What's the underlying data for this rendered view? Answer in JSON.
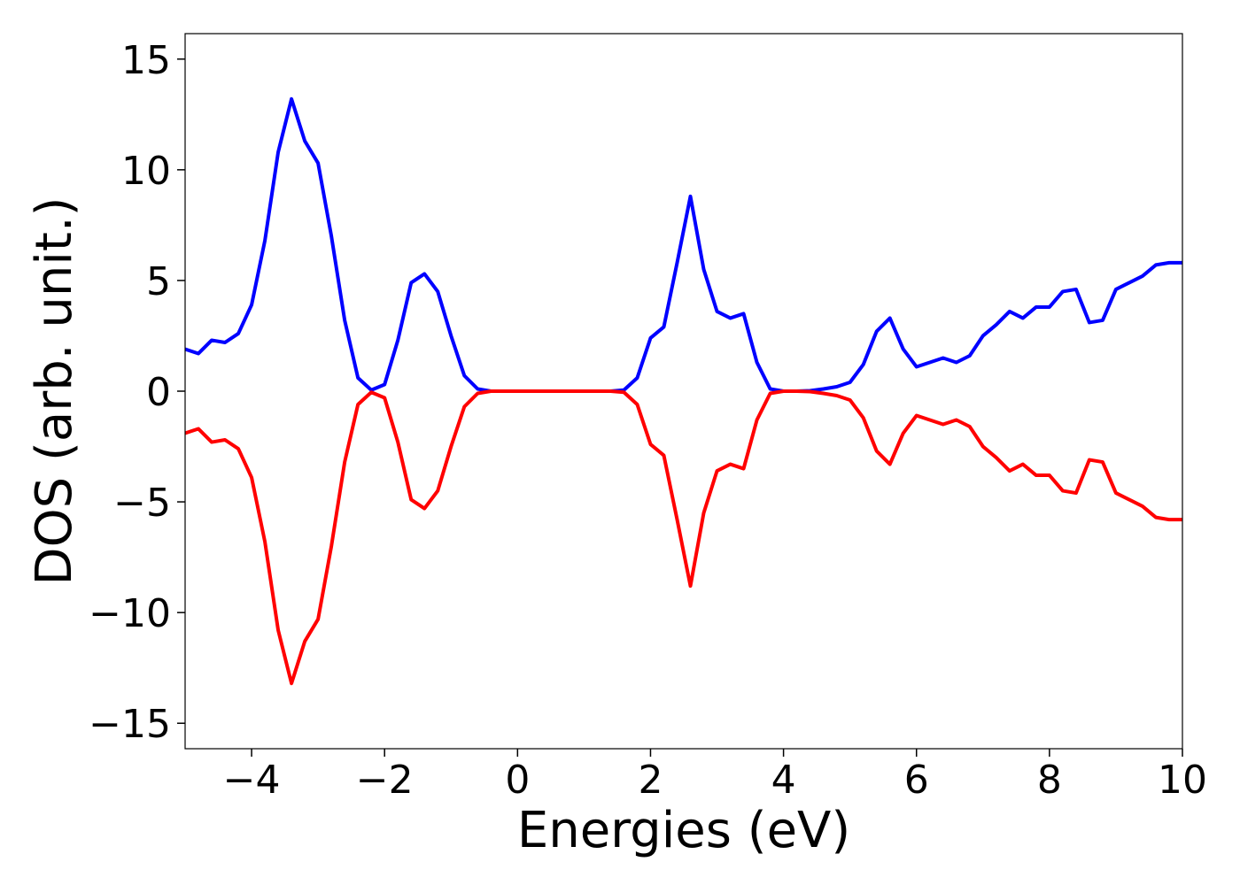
{
  "chart_data": {
    "type": "line",
    "xlabel": "Energies (eV)",
    "ylabel": "DOS (arb. unit.)",
    "x": [
      -5.0,
      -4.8,
      -4.6,
      -4.4,
      -4.2,
      -4.0,
      -3.8,
      -3.6,
      -3.4,
      -3.2,
      -3.0,
      -2.8,
      -2.6,
      -2.4,
      -2.2,
      -2.0,
      -1.8,
      -1.6,
      -1.4,
      -1.2,
      -1.0,
      -0.8,
      -0.6,
      -0.4,
      -0.2,
      0.0,
      0.2,
      0.4,
      0.6,
      0.8,
      1.0,
      1.2,
      1.4,
      1.6,
      1.8,
      2.0,
      2.2,
      2.4,
      2.6,
      2.8,
      3.0,
      3.2,
      3.4,
      3.6,
      3.8,
      4.0,
      4.2,
      4.4,
      4.6,
      4.8,
      5.0,
      5.2,
      5.4,
      5.6,
      5.8,
      6.0,
      6.2,
      6.4,
      6.6,
      6.8,
      7.0,
      7.2,
      7.4,
      7.6,
      7.8,
      8.0,
      8.2,
      8.4,
      8.6,
      8.8,
      9.0,
      9.2,
      9.4,
      9.6,
      9.8,
      10.0
    ],
    "series": [
      {
        "color": "#0000ff",
        "values": [
          1.9,
          1.7,
          2.3,
          2.2,
          2.6,
          3.9,
          6.8,
          10.8,
          13.2,
          11.3,
          10.3,
          7.0,
          3.2,
          0.6,
          0.05,
          0.3,
          2.3,
          4.9,
          5.3,
          4.5,
          2.5,
          0.7,
          0.1,
          0,
          0,
          0,
          0,
          0,
          0,
          0,
          0,
          0,
          0,
          0.05,
          0.6,
          2.4,
          2.9,
          5.8,
          8.8,
          5.5,
          3.6,
          3.3,
          3.5,
          1.3,
          0.1,
          0,
          0,
          0.02,
          0.1,
          0.2,
          0.4,
          1.2,
          2.7,
          3.3,
          1.9,
          1.1,
          1.3,
          1.5,
          1.3,
          1.6,
          2.5,
          3.0,
          3.6,
          3.3,
          3.8,
          3.8,
          4.5,
          4.6,
          3.1,
          3.2,
          4.6,
          4.9,
          5.2,
          5.7,
          5.8,
          5.8
        ]
      },
      {
        "color": "#ff0000",
        "values": [
          -1.9,
          -1.7,
          -2.3,
          -2.2,
          -2.6,
          -3.9,
          -6.8,
          -10.8,
          -13.2,
          -11.3,
          -10.3,
          -7.0,
          -3.2,
          -0.6,
          -0.05,
          -0.3,
          -2.3,
          -4.9,
          -5.3,
          -4.5,
          -2.5,
          -0.7,
          -0.1,
          0,
          0,
          0,
          0,
          0,
          0,
          0,
          0,
          0,
          0,
          -0.05,
          -0.6,
          -2.4,
          -2.9,
          -5.8,
          -8.8,
          -5.5,
          -3.6,
          -3.3,
          -3.5,
          -1.3,
          -0.1,
          0,
          0,
          -0.02,
          -0.1,
          -0.2,
          -0.4,
          -1.2,
          -2.7,
          -3.3,
          -1.9,
          -1.1,
          -1.3,
          -1.5,
          -1.3,
          -1.6,
          -2.5,
          -3.0,
          -3.6,
          -3.3,
          -3.8,
          -3.8,
          -4.5,
          -4.6,
          -3.1,
          -3.2,
          -4.6,
          -4.9,
          -5.2,
          -5.7,
          -5.8,
          -5.8
        ]
      }
    ],
    "xlim": [
      -5,
      10
    ],
    "xticks": [
      {
        "value": -4,
        "label": "−4"
      },
      {
        "value": -2,
        "label": "−2"
      },
      0,
      2,
      4,
      6,
      8,
      10
    ],
    "ylim": [
      -16.15,
      16.15
    ],
    "yticks": [
      {
        "value": -15,
        "label": "−15"
      },
      {
        "value": -10,
        "label": "−10"
      },
      {
        "value": -5,
        "label": "−5"
      },
      0,
      5,
      10,
      15
    ],
    "grid": false
  }
}
